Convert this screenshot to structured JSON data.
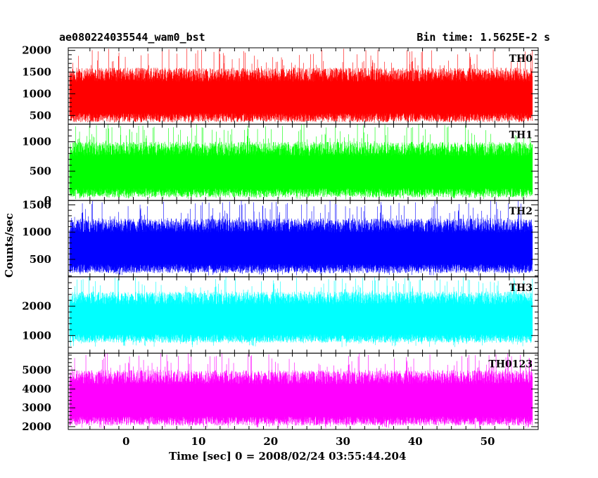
{
  "chart_data": {
    "type": "line",
    "title": "ae080224035544_wam0_bst",
    "subtitle": "Bin time: 1.5625E-2 s",
    "xlabel": "Time [sec] 0 = 2008/02/24 03:55:44.204",
    "ylabel": "Counts/sec",
    "xlim": [
      -8,
      57
    ],
    "x_ticks": [
      0,
      10,
      20,
      30,
      40,
      50
    ],
    "x_tick_labels": [
      "0",
      "10",
      "20",
      "30",
      "40",
      "50"
    ],
    "x_data_range": [
      -7.8,
      56.2
    ],
    "legend": "none",
    "grid": false,
    "panels": [
      {
        "name": "TH0",
        "color": "#ff0000",
        "ylim": [
          300,
          2060
        ],
        "y_ticks": [
          500,
          1000,
          1500,
          2000
        ],
        "y_tick_labels": [
          "500",
          "1000",
          "1500",
          "2000"
        ],
        "typical_low": 450,
        "typical_high": 1600,
        "min": 330,
        "max": 2050,
        "mean": 1000
      },
      {
        "name": "TH1",
        "color": "#00ff00",
        "ylim": [
          0,
          1300
        ],
        "y_ticks": [
          0,
          500,
          1000
        ],
        "y_tick_labels": [
          "0",
          "500",
          "1000"
        ],
        "typical_low": 130,
        "typical_high": 1000,
        "min": 20,
        "max": 1300,
        "mean": 550
      },
      {
        "name": "TH2",
        "color": "#0000ff",
        "ylim": [
          180,
          1580
        ],
        "y_ticks": [
          500,
          1000,
          1500
        ],
        "y_tick_labels": [
          "500",
          "1000",
          "1500"
        ],
        "typical_low": 330,
        "typical_high": 1250,
        "min": 200,
        "max": 1580,
        "mean": 720
      },
      {
        "name": "TH3",
        "color": "#00ffff",
        "ylim": [
          400,
          3000
        ],
        "y_ticks": [
          1000,
          2000
        ],
        "y_tick_labels": [
          "1000",
          "2000"
        ],
        "typical_low": 900,
        "typical_high": 2500,
        "min": 600,
        "max": 3000,
        "mean": 1650
      },
      {
        "name": "TH0123",
        "color": "#ff00ff",
        "ylim": [
          1850,
          5900
        ],
        "y_ticks": [
          2000,
          3000,
          4000,
          5000
        ],
        "y_tick_labels": [
          "2000",
          "3000",
          "4000",
          "5000"
        ],
        "typical_low": 2300,
        "typical_high": 5000,
        "min": 1900,
        "max": 5900,
        "mean": 3700
      }
    ]
  }
}
